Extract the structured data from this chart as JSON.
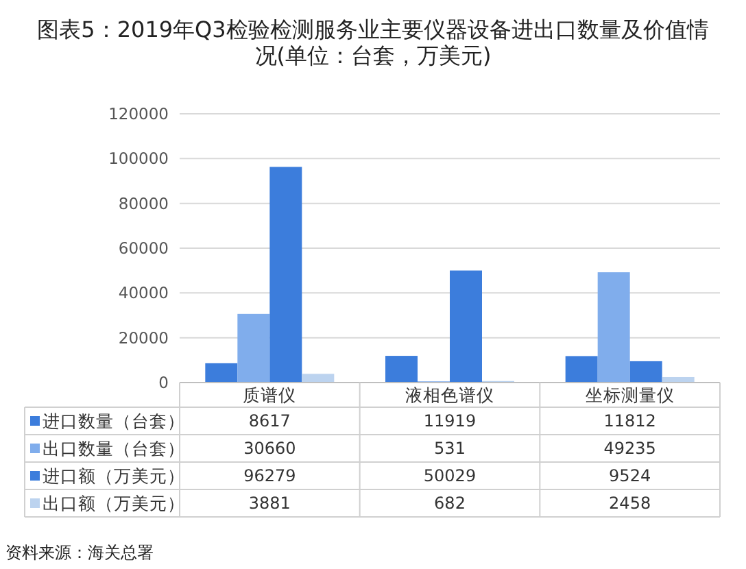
{
  "chart_data": {
    "type": "bar",
    "title": "图表5：2019年Q3检验检测服务业主要仪器设备进出口数量及价值情况(单位：台套，万美元)",
    "categories": [
      "质谱仪",
      "液相色谱仪",
      "坐标测量仪"
    ],
    "series": [
      {
        "name": "进口数量（台套）",
        "color": "#3c7ddc",
        "values": [
          8617,
          11919,
          11812
        ]
      },
      {
        "name": "出口数量（台套）",
        "color": "#80adec",
        "values": [
          30660,
          531,
          49235
        ]
      },
      {
        "name": "进口额（万美元）",
        "color": "#3c7ddc",
        "values": [
          96279,
          50029,
          9524
        ]
      },
      {
        "name": "出口额（万美元）",
        "color": "#bcd3ef",
        "values": [
          3881,
          682,
          2458
        ]
      }
    ],
    "ylim": [
      0,
      120000
    ],
    "yticks": [
      0,
      20000,
      40000,
      60000,
      80000,
      100000,
      120000
    ],
    "grid": "y",
    "legend": "bottom",
    "data_labels": true,
    "annotations": [
      "资料来源：海关总署"
    ]
  }
}
